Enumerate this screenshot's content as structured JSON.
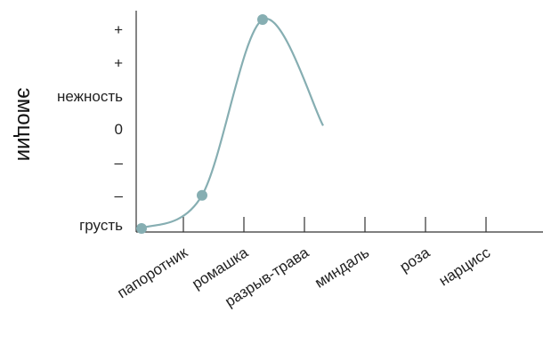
{
  "chart_data": {
    "type": "line",
    "title": "",
    "xlabel": "",
    "ylabel": "эмоции",
    "categories": [
      "папоротник",
      "ромашка",
      "разрыв-трава",
      "миндаль",
      "роза",
      "нарцисс"
    ],
    "y_tick_labels": [
      "грусть",
      "–",
      "–",
      "0",
      "нежность",
      "+",
      "+"
    ],
    "ylim": [
      0,
      6
    ],
    "grid": false,
    "legend": "none",
    "series": [
      {
        "color": "#86aeb2",
        "points": [
          {
            "x": "папоротник",
            "y": 0,
            "marker": true
          },
          {
            "x": "ромашка",
            "y": 1,
            "marker": true
          },
          {
            "x": "разрыв-трава",
            "y": 6.3,
            "marker": true
          },
          {
            "x": "миндаль",
            "y": 3.1,
            "marker": false
          }
        ]
      }
    ]
  }
}
